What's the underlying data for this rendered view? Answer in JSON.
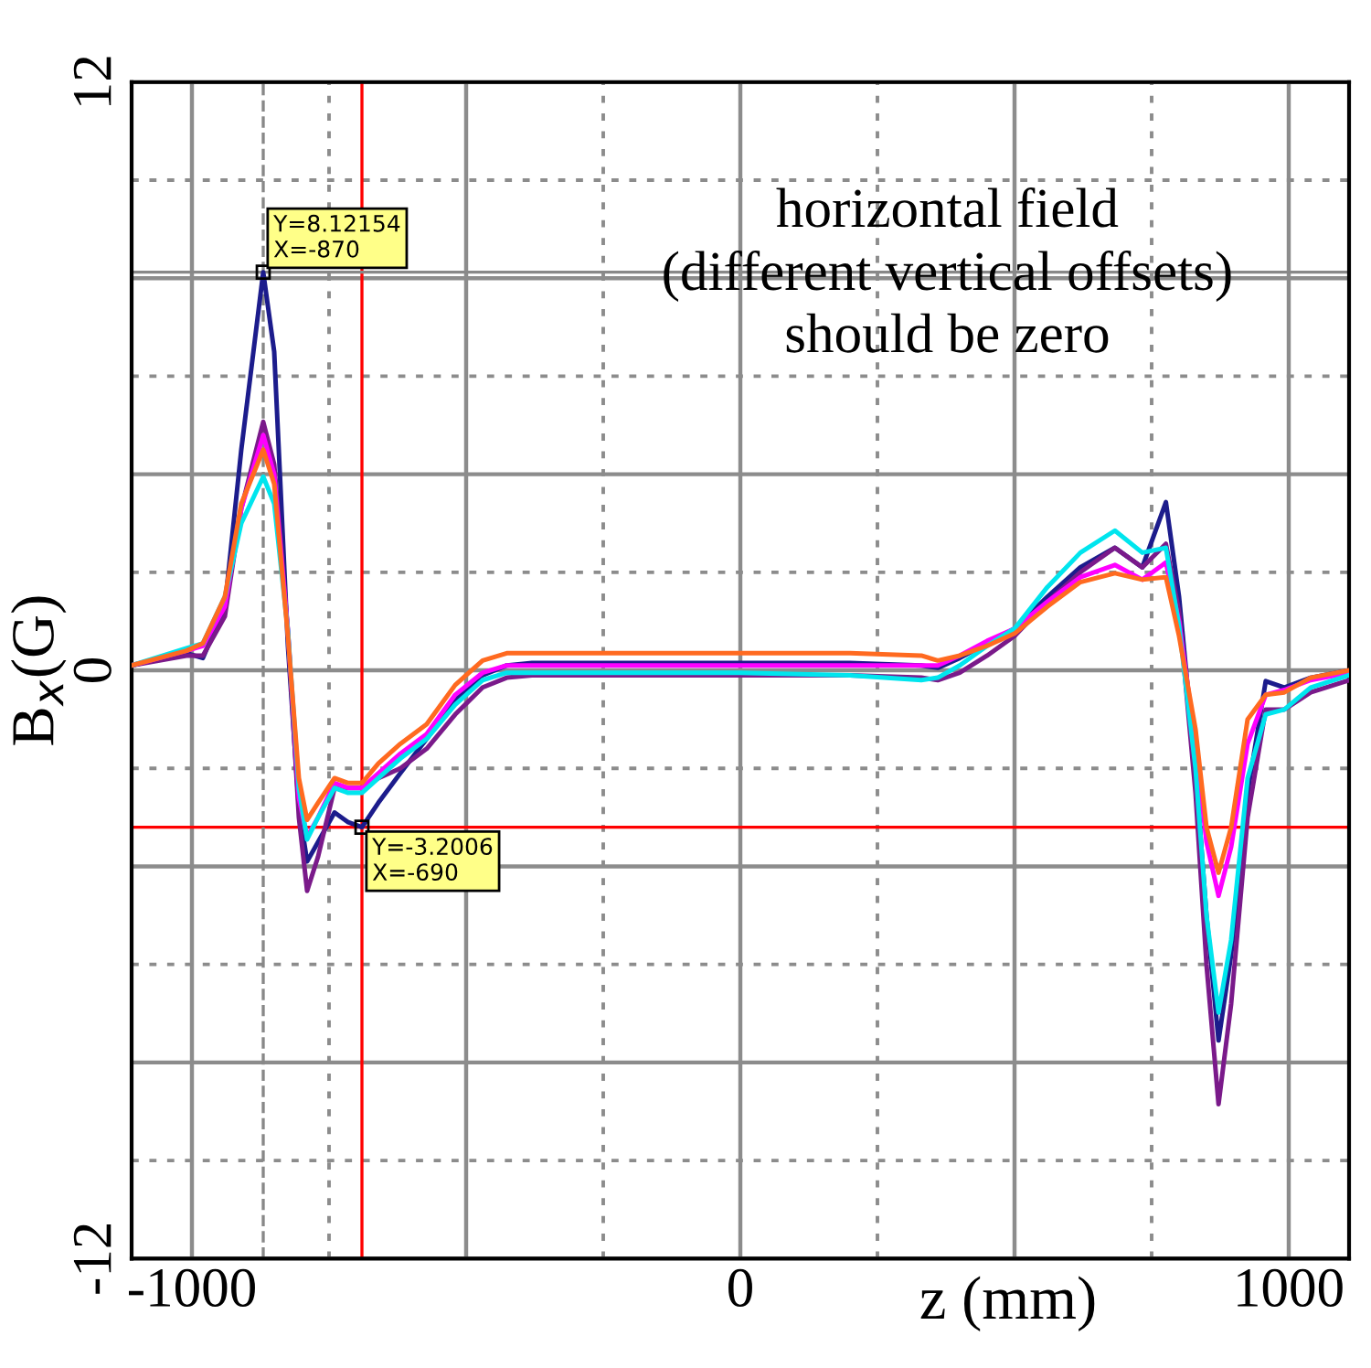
{
  "chart_data": {
    "type": "line",
    "xlabel": "z (mm)",
    "ylabel": "B$_{x}$(G)",
    "x": [
      -1110,
      -1010,
      -980,
      -940,
      -910,
      -870,
      -850,
      -825,
      -805,
      -790,
      -770,
      -740,
      -715,
      -690,
      -660,
      -620,
      -572,
      -520,
      -470,
      -426,
      -380,
      -200,
      0,
      200,
      330,
      360,
      400,
      450,
      500,
      560,
      620,
      683,
      733,
      776,
      800,
      830,
      850,
      872,
      895,
      925,
      958,
      992,
      1040,
      1110
    ],
    "series": [
      {
        "color": "#1c1c8c",
        "values": [
          0.1,
          0.35,
          0.25,
          1.3,
          4.5,
          8.12,
          6.5,
          0.5,
          -2.8,
          -3.9,
          -3.5,
          -2.9,
          -3.1,
          -3.2,
          -2.7,
          -2.1,
          -1.4,
          -0.6,
          -0.1,
          0.1,
          0.15,
          0.15,
          0.15,
          0.15,
          0.1,
          0.05,
          0.25,
          0.55,
          0.85,
          1.5,
          2.1,
          2.5,
          2.1,
          3.43,
          1.5,
          -2,
          -5,
          -7.55,
          -5.8,
          -2.5,
          -0.22,
          -0.35,
          -0.15,
          0.0
        ]
      },
      {
        "color": "#7a1a8a",
        "values": [
          0.1,
          0.3,
          0.3,
          1.1,
          3.3,
          5.07,
          4.2,
          0.8,
          -3.0,
          -4.5,
          -3.8,
          -2.4,
          -2.4,
          -2.4,
          -2.2,
          -2.0,
          -1.6,
          -0.9,
          -0.35,
          -0.15,
          -0.1,
          -0.1,
          -0.1,
          -0.1,
          -0.15,
          -0.2,
          -0.05,
          0.3,
          0.7,
          1.4,
          2.0,
          2.5,
          2.1,
          2.58,
          1.2,
          -2.5,
          -6,
          -8.85,
          -6.8,
          -3,
          -0.8,
          -0.8,
          -0.45,
          -0.2
        ]
      },
      {
        "color": "#ff00ff",
        "values": [
          0.1,
          0.4,
          0.5,
          1.3,
          3.3,
          4.8,
          4.0,
          0.8,
          -2.6,
          -3.4,
          -3.0,
          -2.3,
          -2.4,
          -2.4,
          -2.1,
          -1.7,
          -1.3,
          -0.5,
          -0.05,
          0.1,
          0.1,
          0.1,
          0.1,
          0.1,
          0.1,
          0.1,
          0.3,
          0.6,
          0.85,
          1.4,
          1.9,
          2.15,
          1.85,
          2.2,
          1.0,
          -1.5,
          -3.5,
          -4.6,
          -3.6,
          -1.5,
          -0.5,
          -0.4,
          -0.2,
          -0.05
        ]
      },
      {
        "color": "#00e5ee",
        "values": [
          0.1,
          0.45,
          0.55,
          1.5,
          3.0,
          3.95,
          3.4,
          0.8,
          -2.4,
          -3.45,
          -3.0,
          -2.4,
          -2.5,
          -2.5,
          -2.2,
          -1.8,
          -1.4,
          -0.7,
          -0.2,
          -0.05,
          -0.05,
          -0.05,
          -0.05,
          -0.1,
          -0.2,
          -0.15,
          0.1,
          0.5,
          0.85,
          1.7,
          2.4,
          2.85,
          2.4,
          2.5,
          0.9,
          -2,
          -5,
          -6.98,
          -5.5,
          -2.2,
          -0.9,
          -0.8,
          -0.35,
          -0.1
        ]
      },
      {
        "color": "#ff6a20",
        "values": [
          0.1,
          0.4,
          0.55,
          1.5,
          3.4,
          4.5,
          3.8,
          0.7,
          -2.2,
          -3.05,
          -2.7,
          -2.2,
          -2.3,
          -2.3,
          -1.9,
          -1.5,
          -1.1,
          -0.3,
          0.2,
          0.35,
          0.35,
          0.35,
          0.35,
          0.35,
          0.3,
          0.2,
          0.3,
          0.5,
          0.75,
          1.3,
          1.8,
          1.98,
          1.85,
          1.9,
          0.7,
          -1.2,
          -3.2,
          -4.13,
          -3.2,
          -1.0,
          -0.5,
          -0.45,
          -0.15,
          0.0
        ]
      }
    ],
    "xlim": [
      -1110,
      1110
    ],
    "ylim": [
      -12,
      12
    ],
    "xticks": [
      -1000,
      {
        "value": -500,
        "label": null
      },
      0,
      {
        "value": 500,
        "label": null
      },
      1000
    ],
    "yticks": [
      -12,
      {
        "value": -8,
        "label": null
      },
      {
        "value": -4,
        "label": null
      },
      0,
      {
        "value": 4,
        "label": null
      },
      {
        "value": 8,
        "label": null
      },
      12
    ],
    "grid": true,
    "legend": false,
    "marker": "none",
    "line_style": "solid",
    "ref_lines": [
      {
        "axis": "x",
        "value": -690,
        "color": "#ff0000",
        "line_style": "solid"
      },
      {
        "axis": "y",
        "value": -3.2006,
        "color": "#ff0000",
        "line_style": "solid"
      },
      {
        "axis": "x",
        "value": -870,
        "color": "#888888",
        "line_style": "dashed"
      },
      {
        "axis": "y",
        "value": 8.12154,
        "color": "#888888",
        "line_style": "solid"
      }
    ],
    "annotations": [
      "horizontal field\n(different vertical offsets)\nshould be zero",
      {
        "text": "Y=8.12154\nX=-870",
        "x": -870,
        "y": 8.12154
      },
      {
        "text": "Y=-3.2006\nX=-690",
        "x": -690,
        "y": -3.2006
      }
    ]
  }
}
